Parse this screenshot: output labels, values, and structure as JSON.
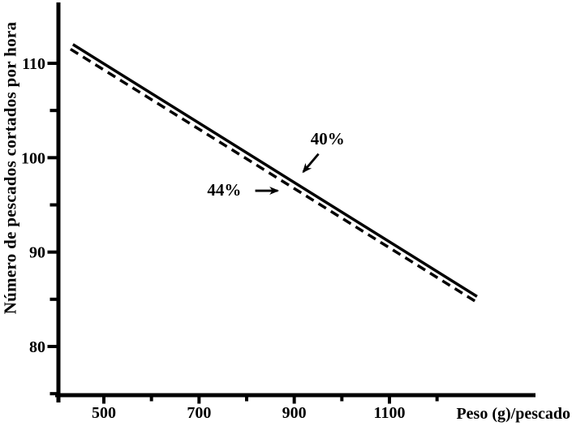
{
  "figure": {
    "background_color": "#ffffff",
    "ink_color": "#000000"
  },
  "chart_data": {
    "type": "line",
    "title": "",
    "xlabel": "Peso (g)/pescado",
    "ylabel": "Número de pescados cortados por hora",
    "xlim": [
      390,
      1410
    ],
    "ylim": [
      74.5,
      116.5
    ],
    "grid": false,
    "legend_position": "none (inline arrow annotations)",
    "x_major_ticks": [
      500,
      700,
      900,
      1100
    ],
    "x_minor_ticks": [
      600,
      800,
      1000,
      1200
    ],
    "y_major_ticks": [
      110,
      100,
      90,
      80
    ],
    "y_minor_ticks": [
      105,
      95,
      85,
      75
    ],
    "series": [
      {
        "name": "40%",
        "line_style": "solid",
        "color": "#000000",
        "points": [
          [
            435,
            112.0
          ],
          [
            1284,
            85.3
          ]
        ]
      },
      {
        "name": "44%",
        "line_style": "dashed",
        "color": "#000000",
        "points": [
          [
            430,
            111.5
          ],
          [
            1280,
            84.8
          ]
        ]
      }
    ],
    "annotations": [
      {
        "text": "40%",
        "points_to_series": "40% (solid line)",
        "x": 970,
        "y": 102.0,
        "arrow": {
          "from": [
            951,
            100.4
          ],
          "to": [
            919,
            98.5
          ]
        }
      },
      {
        "text": "44%",
        "points_to_series": "44% (dashed line)",
        "x": 753,
        "y": 96.6,
        "arrow": {
          "from": [
            818,
            96.5
          ],
          "to": [
            865,
            96.5
          ]
        }
      }
    ]
  }
}
